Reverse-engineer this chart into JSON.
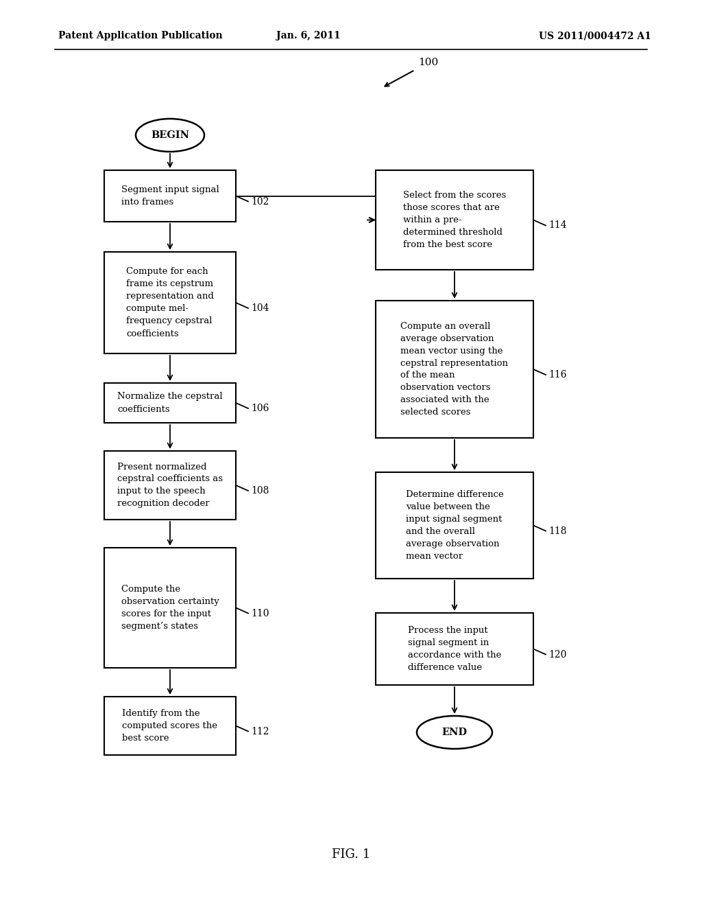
{
  "bg_color": "#ffffff",
  "header_left": "Patent Application Publication",
  "header_center": "Jan. 6, 2011",
  "header_right": "US 2011/0004472 A1",
  "figure_label": "FIG. 1",
  "label_100": "100",
  "begin_label": "BEGIN",
  "end_label": "END",
  "left_boxes": [
    {
      "label": "Segment input signal\ninto frames",
      "number": "102"
    },
    {
      "label": "Compute for each\nframe its cepstrum\nrepresentation and\ncompute mel-\nfrequency cepstral\ncoefficients",
      "number": "104"
    },
    {
      "label": "Normalize the cepstral\ncoefficients",
      "number": "106"
    },
    {
      "label": "Present normalized\ncepstral coefficients as\ninput to the speech\nrecognition decoder",
      "number": "108"
    },
    {
      "label": "Compute the\nobservation certainty\nscores for the input\nsegment’s states",
      "number": "110"
    },
    {
      "label": "Identify from the\ncomputed scores the\nbest score",
      "number": "112"
    }
  ],
  "right_boxes": [
    {
      "label": "Select from the scores\nthose scores that are\nwithin a pre-\ndetermined threshold\nfrom the best score",
      "number": "114"
    },
    {
      "label": "Compute an overall\naverage observation\nmean vector using the\ncepstral representation\nof the mean\nobservation vectors\nassociated with the\nselected scores",
      "number": "116"
    },
    {
      "label": "Determine difference\nvalue between the\ninput signal segment\nand the overall\naverage observation\nmean vector",
      "number": "118"
    },
    {
      "label": "Process the input\nsignal segment in\naccordance with the\ndifference value",
      "number": "120"
    }
  ]
}
